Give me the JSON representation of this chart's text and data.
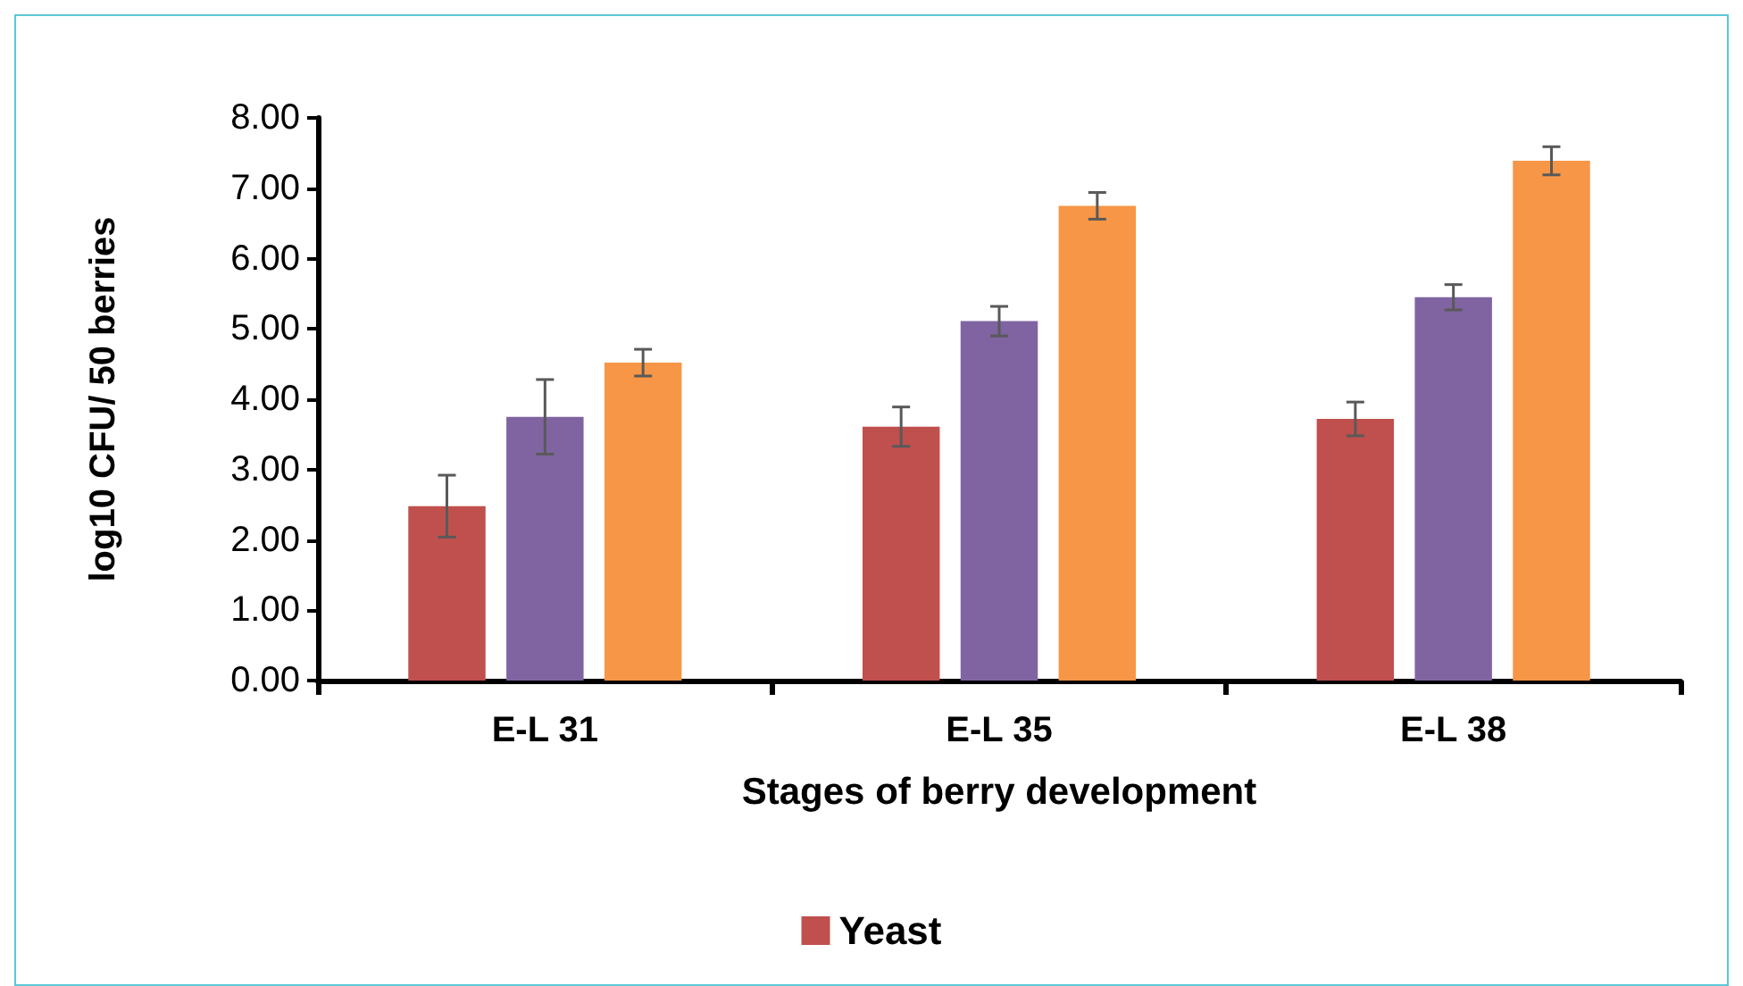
{
  "chart_data": {
    "type": "bar",
    "xlabel": "Stages of berry development",
    "ylabel": "log10 CFU/ 50 berries",
    "categories": [
      "E-L 31",
      "E-L 35",
      "E-L 38"
    ],
    "series": [
      {
        "name": "Yeast",
        "color": "#c0504d",
        "values": [
          2.48,
          3.61,
          3.72
        ],
        "errors": [
          0.44,
          0.28,
          0.24
        ]
      },
      {
        "color": "#8064a2",
        "values": [
          3.75,
          5.11,
          5.45
        ],
        "errors": [
          0.53,
          0.21,
          0.18
        ]
      },
      {
        "color": "#f79646",
        "values": [
          4.52,
          6.75,
          7.39
        ],
        "errors": [
          0.19,
          0.19,
          0.2
        ]
      }
    ],
    "ylim": [
      0,
      8
    ],
    "yticks": [
      {
        "value": 0,
        "label": "0.00"
      },
      {
        "value": 1,
        "label": "1.00"
      },
      {
        "value": 2,
        "label": "2.00"
      },
      {
        "value": 3,
        "label": "3.00"
      },
      {
        "value": 4,
        "label": "4.00"
      },
      {
        "value": 5,
        "label": "5.00"
      },
      {
        "value": 6,
        "label": "6.00"
      },
      {
        "value": 7,
        "label": "7.00"
      },
      {
        "value": 8,
        "label": "8.00"
      }
    ],
    "grid": false,
    "legend": "bottom"
  }
}
